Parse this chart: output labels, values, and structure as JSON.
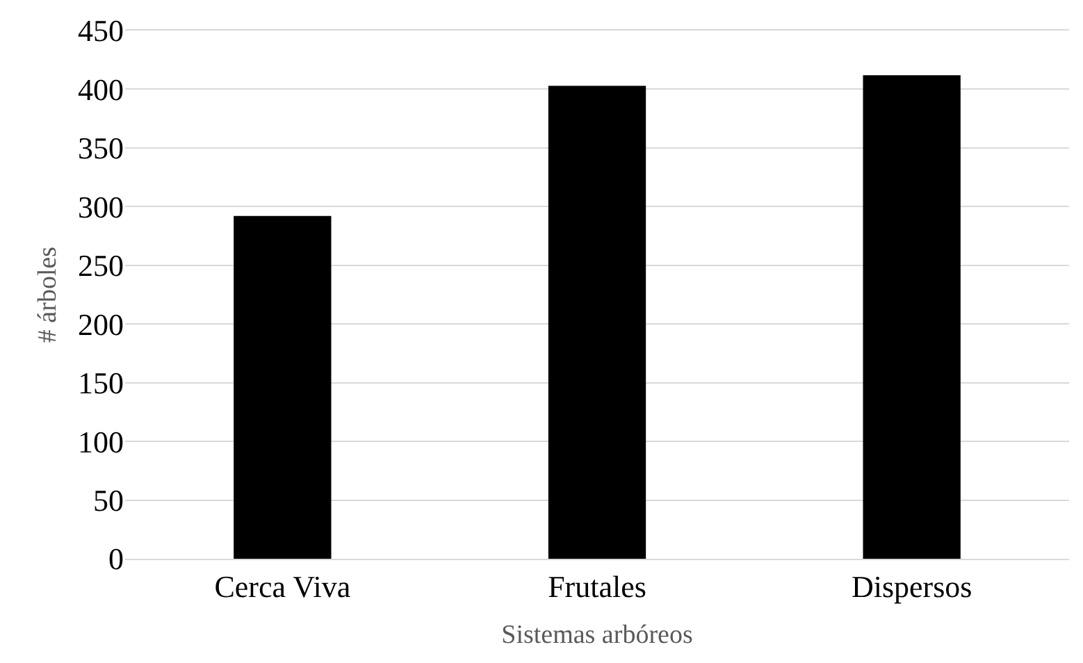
{
  "chart_data": {
    "type": "bar",
    "xlabel": "Sistemas arbóreos",
    "ylabel": "# árboles",
    "categories": [
      "Cerca Viva",
      "Frutales",
      "Dispersos"
    ],
    "values": [
      292,
      403,
      412
    ],
    "color": "#000000",
    "ylim": [
      0,
      450
    ],
    "yticks": [
      0,
      50,
      100,
      150,
      200,
      250,
      300,
      350,
      400,
      450
    ],
    "grid": "y"
  }
}
